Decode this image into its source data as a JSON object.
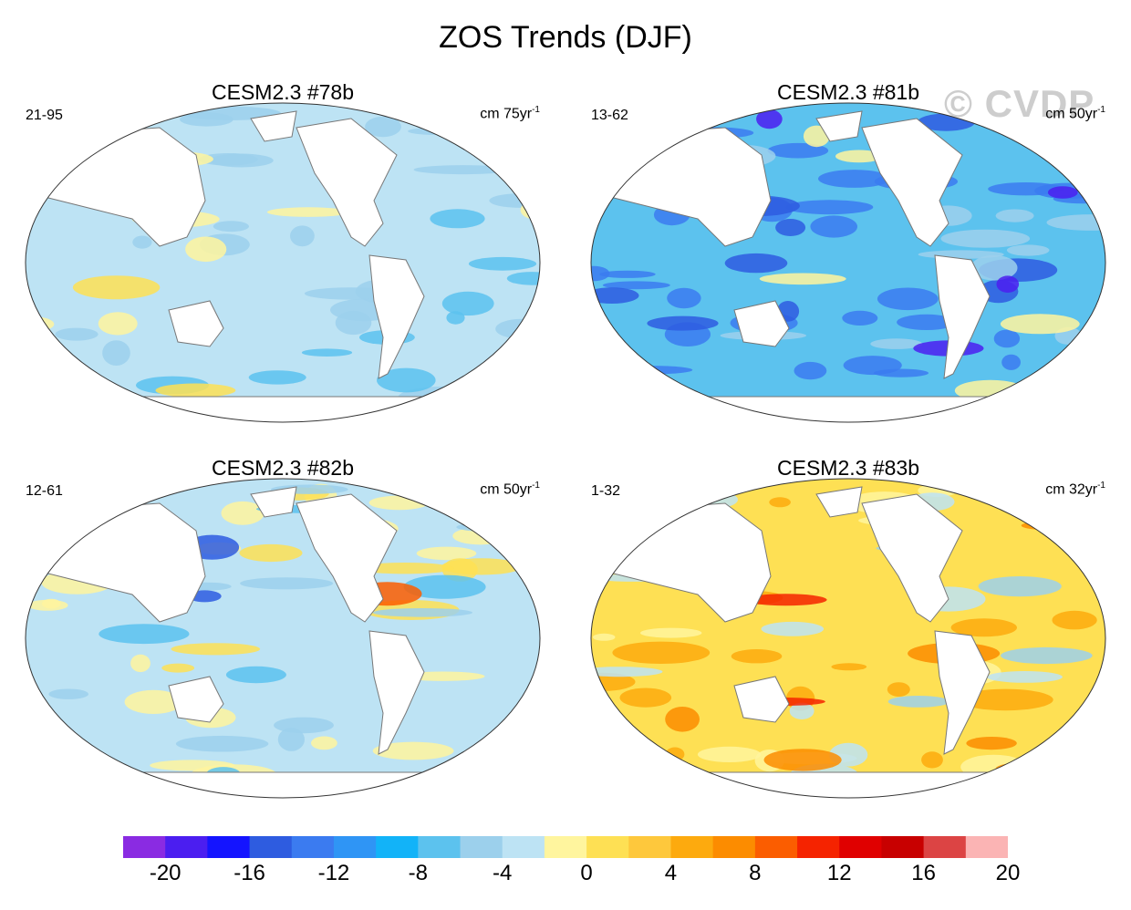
{
  "title": "ZOS Trends (DJF)",
  "watermark": "© CVDP",
  "panels": [
    {
      "title": "CESM2.3 #78b",
      "range": "21-95",
      "unit": "cm 75yr",
      "unit_sup": "-1",
      "scheme": "light-blue"
    },
    {
      "title": "CESM2.3 #81b",
      "range": "13-62",
      "unit": "cm 50yr",
      "unit_sup": "-1",
      "scheme": "blue"
    },
    {
      "title": "CESM2.3 #82b",
      "range": "12-61",
      "unit": "cm 50yr",
      "unit_sup": "-1",
      "scheme": "mixed"
    },
    {
      "title": "CESM2.3 #83b",
      "range": "1-32",
      "unit": "cm 32yr",
      "unit_sup": "-1",
      "scheme": "warm"
    }
  ],
  "colorbar": {
    "colors": [
      "#8a2be2",
      "#4b1ef0",
      "#1414ff",
      "#2e5ce0",
      "#3b7bf0",
      "#2f95f5",
      "#12b3f8",
      "#5cc2ee",
      "#9cd0ec",
      "#bde3f4",
      "#fff59e",
      "#fee054",
      "#fec83c",
      "#fdaa0e",
      "#fc8c00",
      "#fb5d00",
      "#f52300",
      "#e00000",
      "#c80000",
      "#dc4444",
      "#fbb4b4"
    ],
    "labels": [
      "-20",
      "-16",
      "-12",
      "-8",
      "-4",
      "0",
      "4",
      "8",
      "12",
      "16",
      "20"
    ]
  }
}
